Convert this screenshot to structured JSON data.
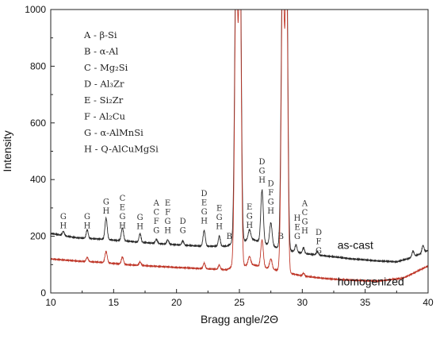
{
  "chart_data": {
    "type": "line",
    "title": "",
    "xlabel": "Bragg angle/2Θ",
    "ylabel": "Intensity",
    "xlim": [
      10,
      40
    ],
    "ylim": [
      0,
      1000
    ],
    "x_ticks": [
      10,
      15,
      20,
      25,
      30,
      35,
      40
    ],
    "x_tick_labels": [
      "10",
      "15",
      "20",
      "25",
      "30",
      "35",
      "40"
    ],
    "y_ticks": [
      0,
      200,
      400,
      600,
      800,
      1000
    ],
    "y_tick_labels": [
      "0",
      "200",
      "400",
      "600",
      "800",
      "1000"
    ],
    "grid": false,
    "legend_placement": "top-left",
    "phase_key": [
      {
        "letter": "A",
        "phase": "β-Si"
      },
      {
        "letter": "B",
        "phase": "α-Al"
      },
      {
        "letter": "C",
        "phase": "Mg₂Si"
      },
      {
        "letter": "D",
        "phase": "Al₃Zr"
      },
      {
        "letter": "E",
        "phase": "Si₂Zr"
      },
      {
        "letter": "F",
        "phase": "Al₂Cu"
      },
      {
        "letter": "G",
        "phase": "α-AlMnSi"
      },
      {
        "letter": "H",
        "phase": "Q-AlCuMgSi"
      }
    ],
    "series": [
      {
        "name": "as-cast",
        "color": "#2b2b2b",
        "baseline": [
          [
            10,
            210
          ],
          [
            12,
            195
          ],
          [
            14,
            190
          ],
          [
            16,
            183
          ],
          [
            18,
            176
          ],
          [
            20,
            170
          ],
          [
            22,
            165
          ],
          [
            24,
            165
          ],
          [
            24.4,
            175
          ],
          [
            26,
            190
          ],
          [
            28,
            160
          ],
          [
            29,
            150
          ],
          [
            30,
            140
          ],
          [
            32,
            130
          ],
          [
            34,
            120
          ],
          [
            36,
            113
          ],
          [
            37.5,
            110
          ],
          [
            38.5,
            122
          ],
          [
            40,
            150
          ]
        ],
        "peaks": [
          {
            "x": 11.0,
            "h": 15,
            "w": 0.08
          },
          {
            "x": 12.9,
            "h": 30,
            "w": 0.08
          },
          {
            "x": 14.4,
            "h": 75,
            "w": 0.09
          },
          {
            "x": 15.7,
            "h": 45,
            "w": 0.09
          },
          {
            "x": 17.1,
            "h": 30,
            "w": 0.08
          },
          {
            "x": 18.4,
            "h": 15,
            "w": 0.08
          },
          {
            "x": 19.3,
            "h": 15,
            "w": 0.08
          },
          {
            "x": 20.5,
            "h": 15,
            "w": 0.08
          },
          {
            "x": 22.2,
            "h": 55,
            "w": 0.09
          },
          {
            "x": 23.4,
            "h": 35,
            "w": 0.08
          },
          {
            "x": 24.75,
            "h": 1100,
            "w": 0.12
          },
          {
            "x": 25.05,
            "h": 1100,
            "w": 0.1
          },
          {
            "x": 25.8,
            "h": 35,
            "w": 0.1
          },
          {
            "x": 26.8,
            "h": 185,
            "w": 0.1
          },
          {
            "x": 27.5,
            "h": 80,
            "w": 0.1
          },
          {
            "x": 28.45,
            "h": 1100,
            "w": 0.12
          },
          {
            "x": 28.75,
            "h": 1100,
            "w": 0.1
          },
          {
            "x": 29.5,
            "h": 25,
            "w": 0.08
          },
          {
            "x": 30.1,
            "h": 20,
            "w": 0.08
          },
          {
            "x": 31.2,
            "h": 12,
            "w": 0.08
          },
          {
            "x": 38.8,
            "h": 20,
            "w": 0.08
          },
          {
            "x": 39.6,
            "h": 25,
            "w": 0.08
          }
        ]
      },
      {
        "name": "homogenized",
        "color": "#c0392b",
        "baseline": [
          [
            10,
            120
          ],
          [
            12,
            113
          ],
          [
            14,
            108
          ],
          [
            16,
            100
          ],
          [
            18,
            95
          ],
          [
            20,
            90
          ],
          [
            22,
            86
          ],
          [
            24,
            82
          ],
          [
            24.4,
            92
          ],
          [
            26,
            100
          ],
          [
            28,
            80
          ],
          [
            30,
            60
          ],
          [
            32,
            50
          ],
          [
            34,
            45
          ],
          [
            36,
            42
          ],
          [
            38,
            52
          ],
          [
            40,
            95
          ]
        ],
        "peaks": [
          {
            "x": 12.9,
            "h": 15,
            "w": 0.08
          },
          {
            "x": 14.4,
            "h": 40,
            "w": 0.09
          },
          {
            "x": 15.7,
            "h": 25,
            "w": 0.09
          },
          {
            "x": 17.1,
            "h": 12,
            "w": 0.08
          },
          {
            "x": 22.2,
            "h": 20,
            "w": 0.08
          },
          {
            "x": 23.4,
            "h": 15,
            "w": 0.08
          },
          {
            "x": 24.75,
            "h": 1100,
            "w": 0.12
          },
          {
            "x": 25.05,
            "h": 1100,
            "w": 0.1
          },
          {
            "x": 25.8,
            "h": 30,
            "w": 0.1
          },
          {
            "x": 26.8,
            "h": 95,
            "w": 0.1
          },
          {
            "x": 27.5,
            "h": 35,
            "w": 0.1
          },
          {
            "x": 28.45,
            "h": 1100,
            "w": 0.12
          },
          {
            "x": 28.75,
            "h": 1100,
            "w": 0.1
          },
          {
            "x": 30.1,
            "h": 10,
            "w": 0.08
          }
        ]
      }
    ],
    "series_labels": [
      {
        "text": "as-cast",
        "x": 32.8,
        "y": 155
      },
      {
        "text": "homogenized",
        "x": 32.8,
        "y": 27
      }
    ],
    "peak_annotations": [
      {
        "x": 11.0,
        "y": 228,
        "lines": [
          "G",
          "H"
        ]
      },
      {
        "x": 12.9,
        "y": 228,
        "lines": [
          "G",
          "H"
        ]
      },
      {
        "x": 14.4,
        "y": 280,
        "lines": [
          "G",
          "H"
        ]
      },
      {
        "x": 15.7,
        "y": 228,
        "lines": [
          "C",
          "E",
          "G",
          "H"
        ]
      },
      {
        "x": 17.1,
        "y": 225,
        "lines": [
          "G",
          "H"
        ]
      },
      {
        "x": 18.4,
        "y": 212,
        "lines": [
          "A",
          "C",
          "F",
          "G"
        ]
      },
      {
        "x": 19.3,
        "y": 212,
        "lines": [
          "E",
          "F",
          "G",
          "H"
        ]
      },
      {
        "x": 20.5,
        "y": 212,
        "lines": [
          "D",
          "G"
        ]
      },
      {
        "x": 22.2,
        "y": 245,
        "lines": [
          "D",
          "E",
          "G",
          "H"
        ]
      },
      {
        "x": 23.4,
        "y": 225,
        "lines": [
          "E",
          "G",
          "H"
        ]
      },
      {
        "x": 24.2,
        "y": 190,
        "lines": [
          "B"
        ]
      },
      {
        "x": 25.8,
        "y": 230,
        "lines": [
          "E",
          "G",
          "H"
        ]
      },
      {
        "x": 26.8,
        "y": 390,
        "lines": [
          "D",
          "G",
          "H"
        ]
      },
      {
        "x": 27.5,
        "y": 280,
        "lines": [
          "D",
          "F",
          "G",
          "H"
        ]
      },
      {
        "x": 28.3,
        "y": 190,
        "lines": [
          "B"
        ]
      },
      {
        "x": 29.6,
        "y": 190,
        "lines": [
          "H",
          "E",
          "G"
        ]
      },
      {
        "x": 30.2,
        "y": 210,
        "lines": [
          "A",
          "C",
          "G",
          "H"
        ]
      },
      {
        "x": 31.3,
        "y": 140,
        "lines": [
          "D",
          "F",
          "G"
        ]
      }
    ]
  }
}
